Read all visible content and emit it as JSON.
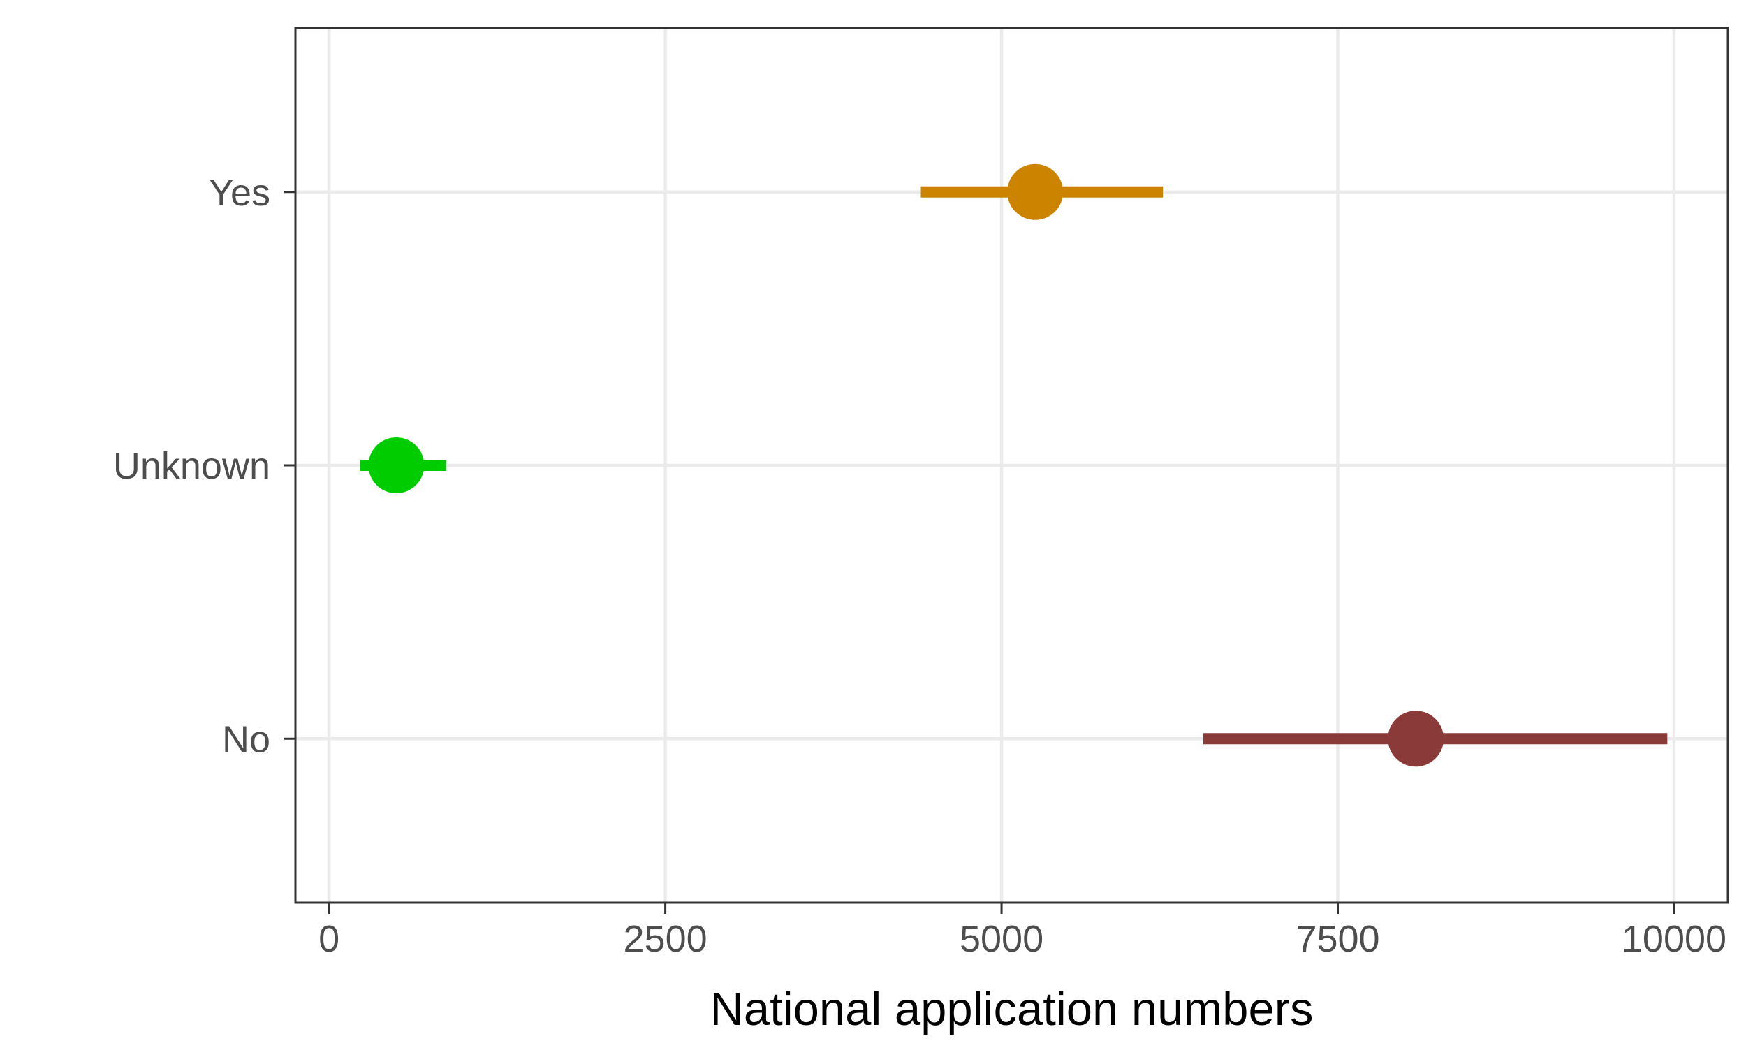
{
  "chart_data": {
    "type": "scatter",
    "subtype": "point-range",
    "title": "",
    "xlabel": "National application numbers",
    "ylabel": "",
    "xlim": [
      -250,
      10400
    ],
    "x_ticks": [
      0,
      2500,
      5000,
      7500,
      10000
    ],
    "x_tick_labels": [
      "0",
      "2500",
      "5000",
      "7500",
      "10000"
    ],
    "categories": [
      "Yes",
      "Unknown",
      "No"
    ],
    "grid": true,
    "legend": "none",
    "points": [
      {
        "category": "Yes",
        "value": 5250,
        "low": 4400,
        "high": 6200,
        "color": "#CC8400"
      },
      {
        "category": "Unknown",
        "value": 500,
        "low": 230,
        "high": 870,
        "color": "#00CC00"
      },
      {
        "category": "No",
        "value": 8080,
        "low": 6500,
        "high": 9950,
        "color": "#8B3A3A"
      }
    ],
    "colors": {
      "panel_border": "#333333",
      "grid": "#EBEBEB",
      "tick": "#333333",
      "tick_label": "#4D4D4D",
      "axis_title": "#000000"
    }
  }
}
